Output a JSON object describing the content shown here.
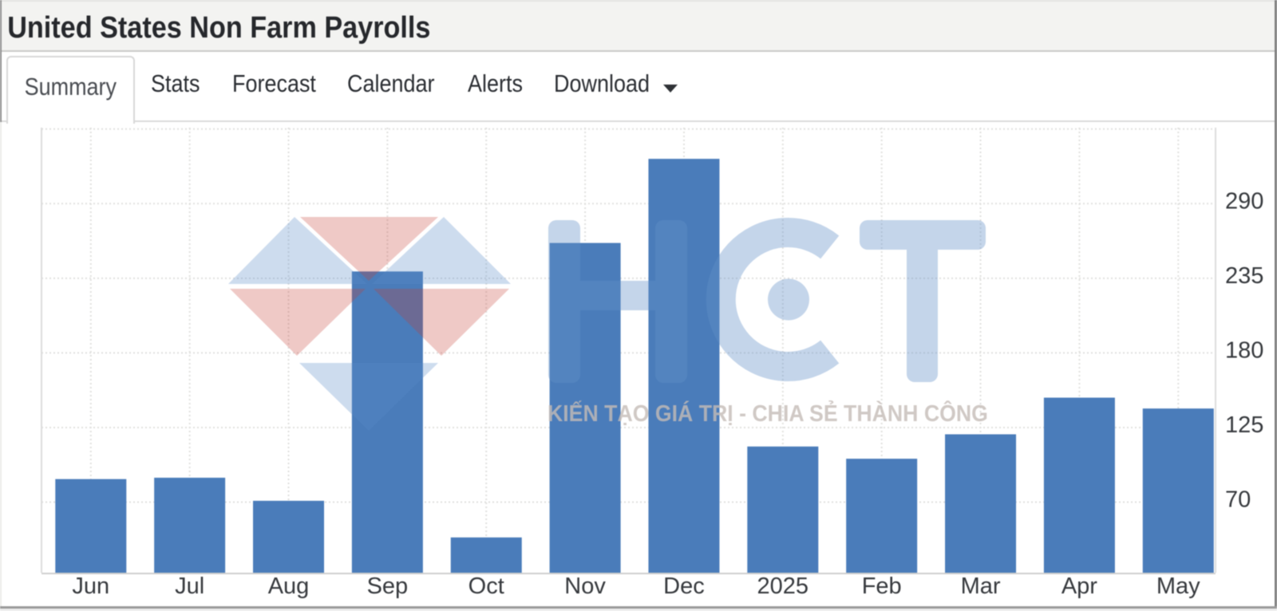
{
  "window": {
    "title": "United States Non Farm Payrolls"
  },
  "tabs": {
    "items": [
      {
        "label": "Summary",
        "active": true,
        "has_dropdown": false
      },
      {
        "label": "Stats",
        "active": false,
        "has_dropdown": false
      },
      {
        "label": "Forecast",
        "active": false,
        "has_dropdown": false
      },
      {
        "label": "Calendar",
        "active": false,
        "has_dropdown": false
      },
      {
        "label": "Alerts",
        "active": false,
        "has_dropdown": false
      },
      {
        "label": "Download",
        "active": false,
        "has_dropdown": true
      }
    ]
  },
  "watermark": {
    "letters": "HCT",
    "tagline": "KIẾN TẠO GIÁ TRỊ - CHIA SẺ THÀNH CÔNG",
    "letter_color": "rgba(100,145,200,0.38)",
    "facet_blue": "rgba(90,140,200,0.30)",
    "facet_pink": "rgba(196,60,50,0.28)"
  },
  "chart_data": {
    "type": "bar",
    "title": "United States Non Farm Payrolls",
    "categories": [
      "Jun",
      "Jul",
      "Aug",
      "Sep",
      "Oct",
      "Nov",
      "Dec",
      "2025",
      "Feb",
      "Mar",
      "Apr",
      "May"
    ],
    "values": [
      87,
      88,
      71,
      240,
      44,
      261,
      323,
      111,
      102,
      120,
      147,
      139
    ],
    "xlabel": "",
    "ylabel": "",
    "ylim": [
      18,
      346
    ],
    "yticks_labeled": [
      70,
      125,
      180,
      235,
      290
    ],
    "ygrid": [
      70,
      125,
      180,
      235,
      290,
      345
    ],
    "grid": true,
    "legend": false,
    "bar_color": "#4a7cba",
    "axis_label_color": "#36393d",
    "gridline_color": "#e0e0de"
  }
}
